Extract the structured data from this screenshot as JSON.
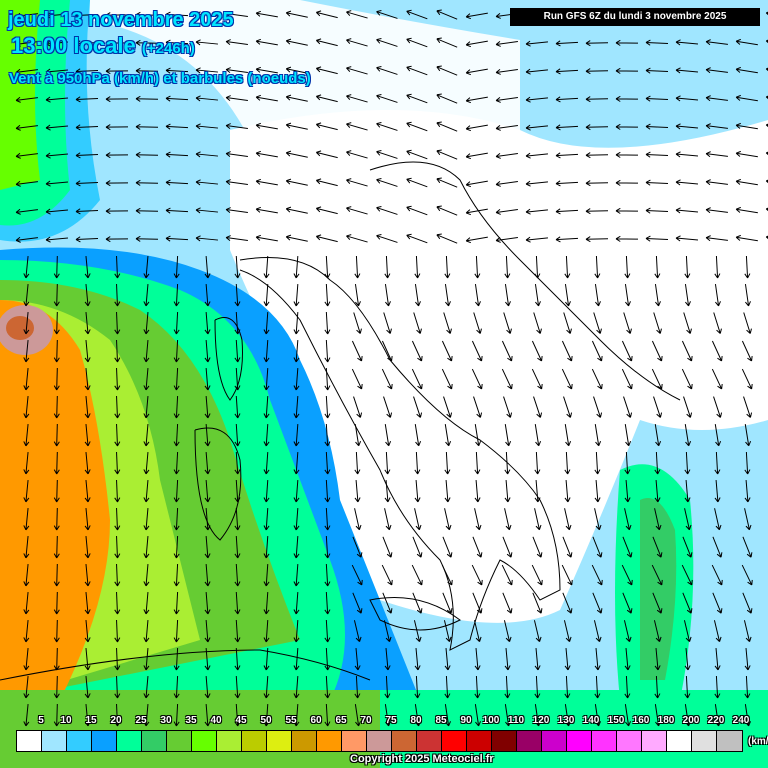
{
  "header": {
    "date": "jeudi 13 novembre 2025",
    "time": "13:00 locale",
    "lead": "(+246h)",
    "field": "Vent à 950hPa (km/h) et barbules (noeuds)",
    "run": "Run GFS 6Z du lundi 3 novembre 2025"
  },
  "legend": {
    "unit": "(km/h)",
    "labels": [
      "5",
      "10",
      "15",
      "20",
      "25",
      "30",
      "35",
      "40",
      "45",
      "50",
      "55",
      "60",
      "65",
      "70",
      "75",
      "80",
      "85",
      "90",
      "100",
      "110",
      "120",
      "130",
      "140",
      "150",
      "160",
      "180",
      "200",
      "220",
      "240"
    ],
    "colors": [
      "#ffffff",
      "#a0e6ff",
      "#33ccff",
      "#0aa0ff",
      "#00ff99",
      "#33cc66",
      "#66cc33",
      "#66ff00",
      "#aaee33",
      "#bbcc00",
      "#ddee11",
      "#cc9900",
      "#ff9900",
      "#ff9966",
      "#cc9999",
      "#cc6633",
      "#cc3333",
      "#ff0000",
      "#cc0000",
      "#800000",
      "#990066",
      "#cc00cc",
      "#ff00ff",
      "#ff33ff",
      "#ff77ff",
      "#ffaaff",
      "#ffffff",
      "#e0e0e0",
      "#c0c0c0"
    ]
  },
  "copyright": "Copyright 2025 Meteociel.fr"
}
